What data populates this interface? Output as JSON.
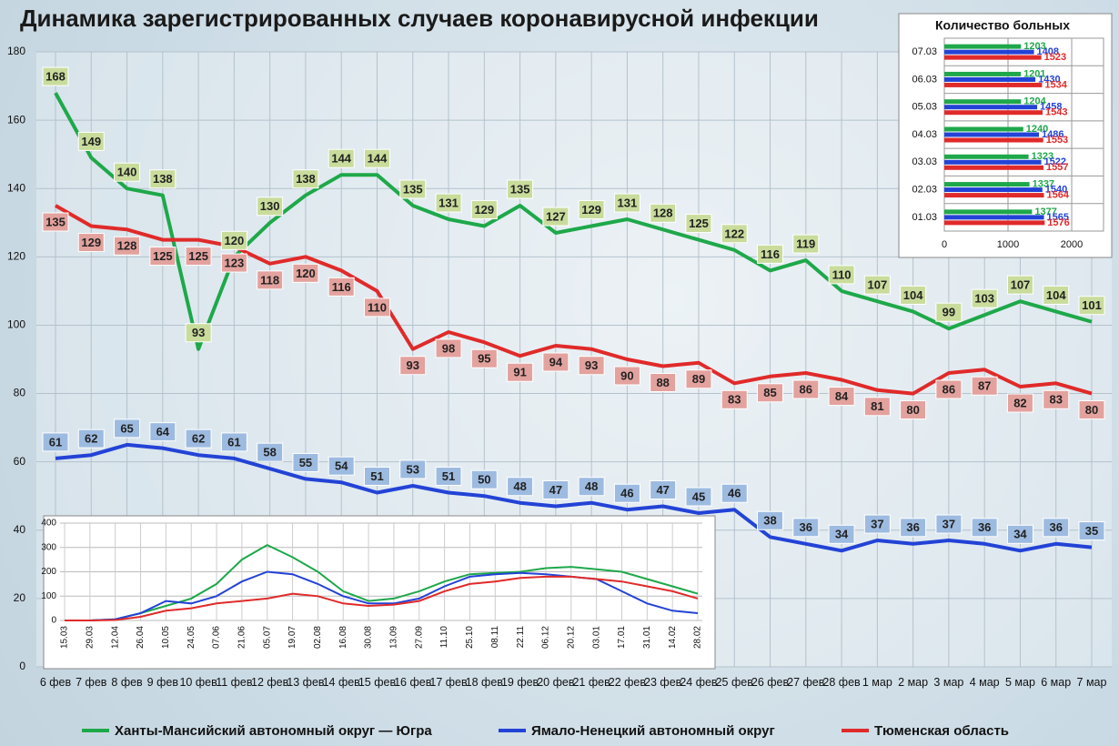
{
  "chart_data": [
    {
      "type": "line",
      "title": "Динамика зарегистрированных случаев коронавирусной инфекции",
      "categories": [
        "6 фев",
        "7 фев",
        "8 фев",
        "9 фев",
        "10 фев",
        "11 фев",
        "12 фев",
        "13 фев",
        "14 фев",
        "15 фев",
        "16 фев",
        "17 фев",
        "18 фев",
        "19 фев",
        "20 фев",
        "21 фев",
        "22 фев",
        "23 фев",
        "24 фев",
        "25 фев",
        "26 фев",
        "27 фев",
        "28 фев",
        "1 мар",
        "2 мар",
        "3 мар",
        "4 мар",
        "5 мар",
        "6 мар",
        "7 мар"
      ],
      "series": [
        {
          "name": "Ханты-Мансийский автономный округ — Югра",
          "color": "#1ea84a",
          "label_color": "#c9dc9c",
          "values": [
            168,
            149,
            140,
            138,
            93,
            120,
            130,
            138,
            144,
            144,
            135,
            131,
            129,
            135,
            127,
            129,
            131,
            128,
            125,
            122,
            116,
            119,
            110,
            107,
            104,
            99,
            103,
            107,
            104,
            101
          ]
        },
        {
          "name": "Ямало-Ненецкий автономный округ",
          "color": "#2343d6",
          "label_color": "#9dbbe0",
          "values": [
            61,
            62,
            65,
            64,
            62,
            61,
            58,
            55,
            54,
            51,
            53,
            51,
            50,
            48,
            47,
            48,
            46,
            47,
            45,
            46,
            38,
            36,
            34,
            37,
            36,
            37,
            36,
            34,
            36,
            35
          ]
        },
        {
          "name": "Тюменская область",
          "color": "#e02a2a",
          "label_color": "#e3a29e",
          "values": [
            135,
            129,
            128,
            125,
            125,
            123,
            118,
            120,
            116,
            110,
            93,
            98,
            95,
            91,
            94,
            93,
            90,
            88,
            89,
            83,
            85,
            86,
            84,
            81,
            80,
            86,
            87,
            82,
            83,
            80
          ]
        }
      ],
      "ylim": [
        0,
        180
      ],
      "yticks": [
        0,
        20,
        40,
        60,
        80,
        100,
        120,
        140,
        160,
        180
      ],
      "grid": true,
      "legend": "bottom"
    },
    {
      "type": "bar",
      "orientation": "horizontal",
      "title": "Количество больных",
      "categories": [
        "07.03",
        "06.03",
        "05.03",
        "04.03",
        "03.03",
        "02.03",
        "01.03"
      ],
      "series": [
        {
          "color": "#1ea84a",
          "values": [
            1203,
            1201,
            1204,
            1240,
            1323,
            1337,
            1377
          ]
        },
        {
          "color": "#2343d6",
          "values": [
            1408,
            1430,
            1458,
            1486,
            1522,
            1540,
            1565
          ]
        },
        {
          "color": "#e02a2a",
          "values": [
            1523,
            1534,
            1543,
            1553,
            1557,
            1564,
            1576
          ]
        }
      ],
      "xlim": [
        0,
        2500
      ],
      "xticks": [
        0,
        1000,
        2000
      ],
      "grid": true
    },
    {
      "type": "line",
      "categories": [
        "15.03",
        "29.03",
        "12.04",
        "26.04",
        "10.05",
        "24.05",
        "07.06",
        "21.06",
        "05.07",
        "19.07",
        "02.08",
        "16.08",
        "30.08",
        "13.09",
        "27.09",
        "11.10",
        "25.10",
        "08.11",
        "22.11",
        "06.12",
        "20.12",
        "03.01",
        "17.01",
        "31.01",
        "14.02",
        "28.02"
      ],
      "series": [
        {
          "color": "#1ea84a",
          "values": [
            0,
            0,
            5,
            30,
            60,
            90,
            150,
            250,
            310,
            260,
            200,
            120,
            80,
            90,
            120,
            160,
            190,
            195,
            200,
            215,
            220,
            210,
            200,
            170,
            140,
            110
          ]
        },
        {
          "color": "#2343d6",
          "values": [
            0,
            0,
            5,
            30,
            80,
            70,
            100,
            160,
            200,
            190,
            150,
            100,
            70,
            70,
            90,
            140,
            180,
            190,
            195,
            190,
            180,
            170,
            120,
            70,
            40,
            30
          ]
        },
        {
          "color": "#e02a2a",
          "values": [
            0,
            0,
            2,
            15,
            40,
            50,
            70,
            80,
            90,
            110,
            100,
            70,
            60,
            65,
            80,
            120,
            150,
            160,
            175,
            180,
            180,
            170,
            160,
            140,
            120,
            90
          ]
        }
      ],
      "ylim": [
        0,
        400
      ],
      "yticks": [
        0,
        100,
        200,
        300,
        400
      ],
      "grid": true
    }
  ]
}
